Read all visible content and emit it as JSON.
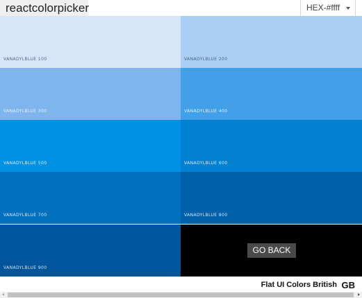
{
  "header": {
    "app_title": "reactcolorpicker",
    "format_select": {
      "value": "HEX-#ffff"
    }
  },
  "swatches": [
    {
      "label": "VANADYLBLUE 100",
      "color": "#d6e5f8"
    },
    {
      "label": "VANADYLBLUE 200",
      "color": "#abcef4"
    },
    {
      "label": "VANADYLBLUE 300",
      "color": "#7db5ec"
    },
    {
      "label": "VANADYLBLUE 400",
      "color": "#42a0e8"
    },
    {
      "label": "VANADYLBLUE 500",
      "color": "#0191e4"
    },
    {
      "label": "VANADYLBLUE 600",
      "color": "#0281d3"
    },
    {
      "label": "VANADYLBLUE 700",
      "color": "#026fbf"
    },
    {
      "label": "VANADYLBLUE 800",
      "color": "#0061ab"
    },
    {
      "label": "VANADYLBLUE 900",
      "color": "#01559c"
    }
  ],
  "back_panel": {
    "button_label": "GO BACK",
    "color": "#000000"
  },
  "footer": {
    "palette_name": "Flat UI Colors British",
    "palette_code": "GB"
  }
}
